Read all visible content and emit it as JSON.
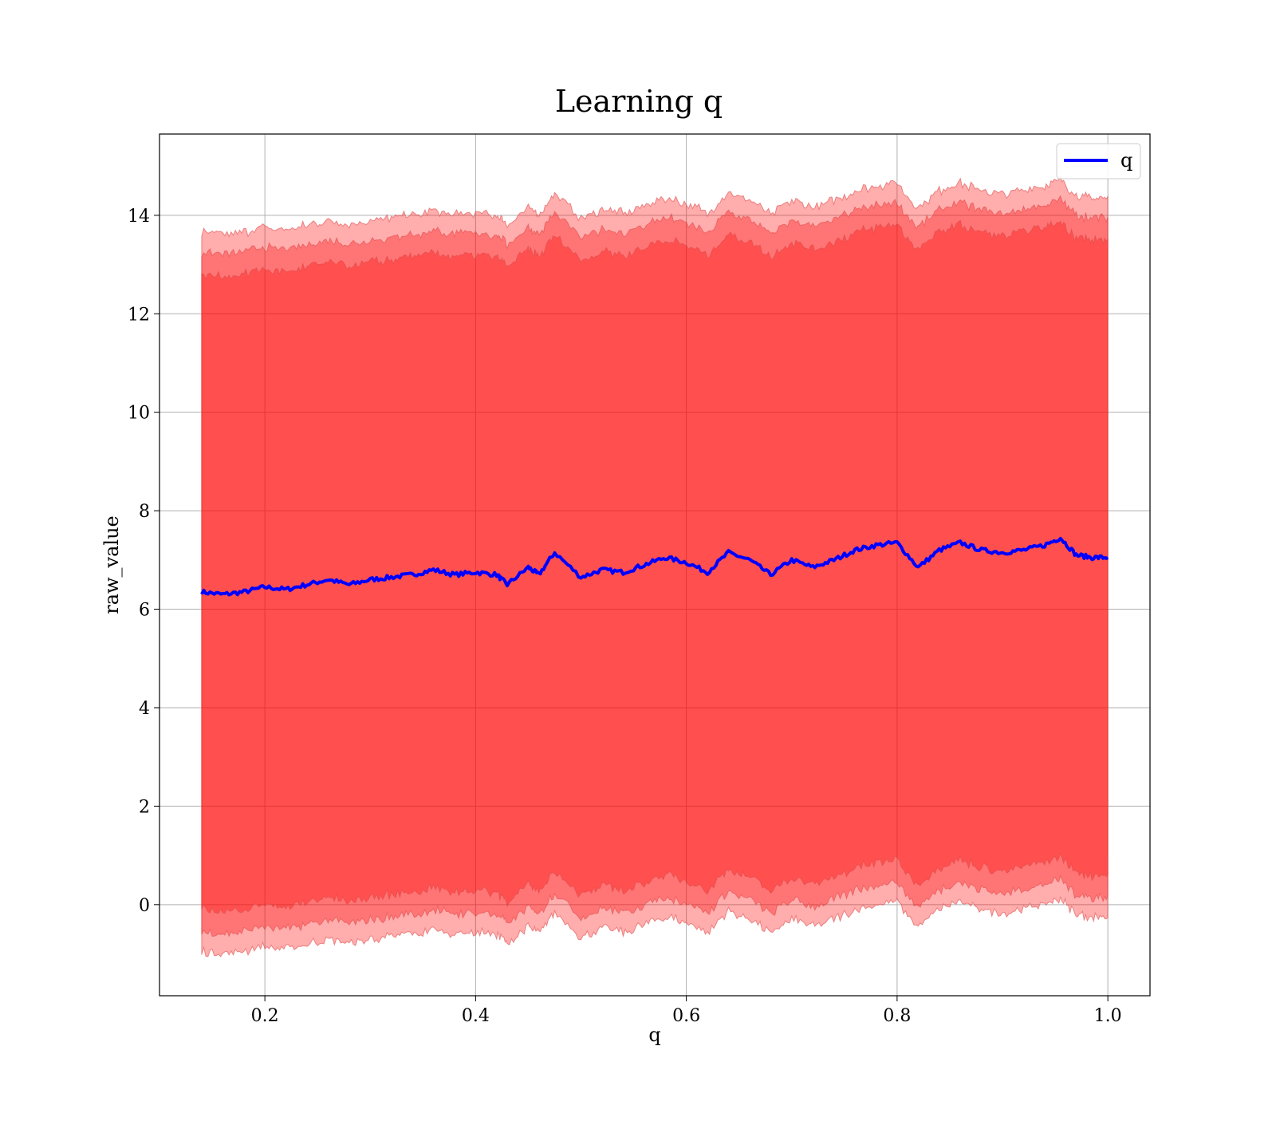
{
  "chart_data": {
    "type": "area",
    "title": "Learning q",
    "xlabel": "q",
    "ylabel": "raw_value",
    "xlim": [
      0.1,
      1.04
    ],
    "ylim": [
      -1.85,
      15.65
    ],
    "x_ticks": [
      0.2,
      0.4,
      0.6,
      0.8,
      1.0
    ],
    "x_tick_labels": [
      "0.2",
      "0.4",
      "0.6",
      "0.8",
      "1.0"
    ],
    "y_ticks": [
      0,
      2,
      4,
      6,
      8,
      10,
      12,
      14
    ],
    "y_tick_labels": [
      "0",
      "2",
      "4",
      "6",
      "8",
      "10",
      "12",
      "14"
    ],
    "grid": true,
    "legend": {
      "placement": "top-right",
      "entries": [
        {
          "label": "q",
          "color": "#0000ff"
        }
      ]
    },
    "colors": {
      "line": "#0000ff",
      "band": "#ff0000",
      "band_fill_opacity": 0.32,
      "band_edge": "#e04a4a"
    },
    "band_half_widths": [
      7.3,
      6.9,
      6.45
    ],
    "series": [
      {
        "name": "q",
        "x": [
          0.14,
          0.16,
          0.18,
          0.2,
          0.22,
          0.24,
          0.26,
          0.28,
          0.3,
          0.32,
          0.34,
          0.36,
          0.38,
          0.4,
          0.42,
          0.43,
          0.45,
          0.46,
          0.475,
          0.5,
          0.52,
          0.54,
          0.56,
          0.58,
          0.6,
          0.62,
          0.64,
          0.66,
          0.68,
          0.7,
          0.72,
          0.74,
          0.76,
          0.78,
          0.8,
          0.82,
          0.84,
          0.86,
          0.88,
          0.9,
          0.92,
          0.94,
          0.955,
          0.97,
          0.985,
          1.0
        ],
        "y": [
          6.35,
          6.3,
          6.35,
          6.45,
          6.4,
          6.5,
          6.6,
          6.5,
          6.6,
          6.65,
          6.7,
          6.8,
          6.7,
          6.75,
          6.7,
          6.5,
          6.85,
          6.7,
          7.15,
          6.65,
          6.8,
          6.75,
          6.9,
          7.05,
          6.95,
          6.75,
          7.15,
          7.0,
          6.7,
          7.0,
          6.85,
          7.0,
          7.2,
          7.3,
          7.35,
          6.85,
          7.2,
          7.35,
          7.2,
          7.15,
          7.2,
          7.3,
          7.45,
          7.1,
          7.05,
          7.05
        ]
      }
    ]
  }
}
